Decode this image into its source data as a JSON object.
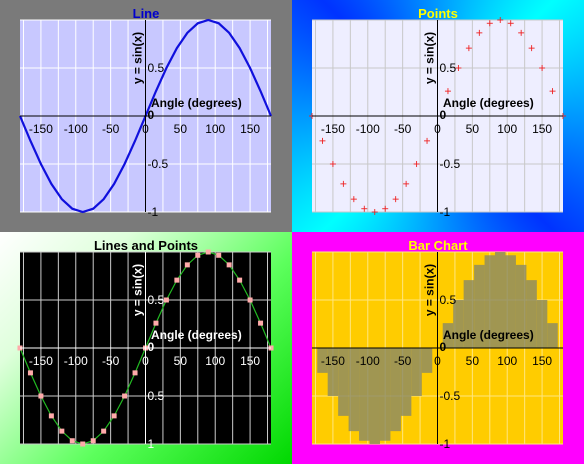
{
  "panels": [
    {
      "id": "line",
      "style": {
        "title_color": "#0000cc",
        "plot_bg": "#c8c8ff",
        "grid": "#ffffff",
        "axis": "#000000",
        "text": "#000000",
        "series": "#1010dd"
      },
      "chart_data": {
        "type": "line",
        "title": "Line",
        "xlabel": "Angle (degrees)",
        "ylabel": "y = sin(x)",
        "xlim": [
          -180,
          180
        ],
        "ylim": [
          -1,
          1
        ],
        "x_ticks": [
          "-150",
          "-100",
          "-50",
          "0",
          "50",
          "100",
          "150"
        ],
        "y_ticks": [
          "0.5",
          "-0.5",
          "-1"
        ],
        "grid": true,
        "x": [
          -180,
          -165,
          -150,
          -135,
          -120,
          -105,
          -90,
          -75,
          -60,
          -45,
          -30,
          -15,
          0,
          15,
          30,
          45,
          60,
          75,
          90,
          105,
          120,
          135,
          150,
          165,
          180
        ],
        "series": [
          {
            "values": [
              0,
              -0.259,
              -0.5,
              -0.707,
              -0.866,
              -0.966,
              -1,
              -0.966,
              -0.866,
              -0.707,
              -0.5,
              -0.259,
              0,
              0.259,
              0.5,
              0.707,
              0.866,
              0.966,
              1,
              0.966,
              0.866,
              0.707,
              0.5,
              0.259,
              0
            ]
          }
        ]
      }
    },
    {
      "id": "points",
      "style": {
        "title_color": "#ffff00",
        "plot_bg": "#eeeeff",
        "grid": "#c8c8c8",
        "axis": "#000000",
        "text": "#000000",
        "series": "#ee2222"
      },
      "chart_data": {
        "type": "scatter",
        "title": "Points",
        "xlabel": "Angle (degrees)",
        "ylabel": "y = sin(x)",
        "xlim": [
          -180,
          180
        ],
        "ylim": [
          -1,
          1
        ],
        "x_ticks": [
          "-150",
          "-100",
          "-50",
          "0",
          "50",
          "100",
          "150"
        ],
        "y_ticks": [
          "0.5",
          "-0.5",
          "-1"
        ],
        "grid": true,
        "x": [
          -180,
          -165,
          -150,
          -135,
          -120,
          -105,
          -90,
          -75,
          -60,
          -45,
          -30,
          -15,
          0,
          15,
          30,
          45,
          60,
          75,
          90,
          105,
          120,
          135,
          150,
          165,
          180
        ],
        "series": [
          {
            "values": [
              0,
              -0.259,
              -0.5,
              -0.707,
              -0.866,
              -0.966,
              -1,
              -0.966,
              -0.866,
              -0.707,
              -0.5,
              -0.259,
              0,
              0.259,
              0.5,
              0.707,
              0.866,
              0.966,
              1,
              0.966,
              0.866,
              0.707,
              0.5,
              0.259,
              0
            ]
          }
        ]
      }
    },
    {
      "id": "lines-and-points",
      "style": {
        "title_color": "#000000",
        "plot_bg": "#000000",
        "grid": "#cccccc",
        "axis": "#ffffff",
        "text": "#ffffff",
        "series": "#22bb22",
        "marker": "#ffaaaa"
      },
      "chart_data": {
        "type": "line",
        "title": "Lines and Points",
        "xlabel": "Angle (degrees)",
        "ylabel": "y = sin(x)",
        "xlim": [
          -180,
          180
        ],
        "ylim": [
          -1,
          1
        ],
        "x_ticks": [
          "-150",
          "-100",
          "-50",
          "0",
          "50",
          "100",
          "150"
        ],
        "y_ticks": [
          "0.5",
          "0.5",
          "1"
        ],
        "grid": true,
        "x": [
          -180,
          -165,
          -150,
          -135,
          -120,
          -105,
          -90,
          -75,
          -60,
          -45,
          -30,
          -15,
          0,
          15,
          30,
          45,
          60,
          75,
          90,
          105,
          120,
          135,
          150,
          165,
          180
        ],
        "series": [
          {
            "values": [
              0,
              -0.259,
              -0.5,
              -0.707,
              -0.866,
              -0.966,
              -1,
              -0.966,
              -0.866,
              -0.707,
              -0.5,
              -0.259,
              0,
              0.259,
              0.5,
              0.707,
              0.866,
              0.966,
              1,
              0.966,
              0.866,
              0.707,
              0.5,
              0.259,
              0
            ]
          }
        ]
      }
    },
    {
      "id": "bar-chart",
      "style": {
        "title_color": "#ffff00",
        "plot_bg": "#ffcc00",
        "grid": "#ffe680",
        "axis": "#000000",
        "text": "#000000",
        "series": "#888866"
      },
      "chart_data": {
        "type": "bar",
        "title": "Bar Chart",
        "xlabel": "Angle (degrees)",
        "ylabel": "y = sin(x)",
        "xlim": [
          -180,
          180
        ],
        "ylim": [
          -1,
          1
        ],
        "x_ticks": [
          "-150",
          "-100",
          "-50",
          "0",
          "50",
          "100",
          "150"
        ],
        "y_ticks": [
          "0.5",
          "-0.5",
          "-1"
        ],
        "grid": true,
        "x": [
          -180,
          -165,
          -150,
          -135,
          -120,
          -105,
          -90,
          -75,
          -60,
          -45,
          -30,
          -15,
          0,
          15,
          30,
          45,
          60,
          75,
          90,
          105,
          120,
          135,
          150,
          165,
          180
        ],
        "series": [
          {
            "values": [
              0,
              -0.259,
              -0.5,
              -0.707,
              -0.866,
              -0.966,
              -1,
              -0.966,
              -0.866,
              -0.707,
              -0.5,
              -0.259,
              0,
              0.259,
              0.5,
              0.707,
              0.866,
              0.966,
              1,
              0.966,
              0.866,
              0.707,
              0.5,
              0.259,
              0
            ]
          }
        ]
      }
    }
  ]
}
